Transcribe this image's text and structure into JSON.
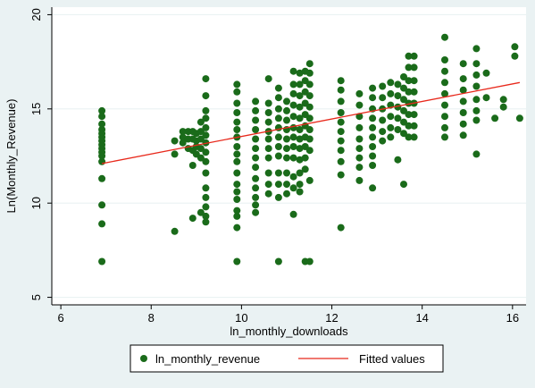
{
  "colors": {
    "page_background": "#eaf2f3",
    "plot_background": "#ffffff",
    "marker": "#1a6b1a",
    "fitted_line": "#e8291c",
    "gridline": "#eaf2f3",
    "axis": "#000000"
  },
  "chart_data": {
    "type": "scatter",
    "title": "",
    "xlabel": "ln_monthly_downloads",
    "ylabel": "Ln(Monthly_Revenue)",
    "xlim": [
      5.8,
      16.3
    ],
    "ylim": [
      4.6,
      20.4
    ],
    "xticks": [
      6,
      8,
      10,
      12,
      14,
      16
    ],
    "yticks": [
      5,
      10,
      15,
      20
    ],
    "grid": "horizontal",
    "legend_position": "bottom",
    "series": [
      {
        "name": "ln_monthly_revenue",
        "kind": "points",
        "points": [
          [
            6.91,
            14.9
          ],
          [
            6.91,
            14.6
          ],
          [
            6.91,
            14.2
          ],
          [
            6.91,
            13.9
          ],
          [
            6.91,
            13.7
          ],
          [
            6.91,
            13.5
          ],
          [
            6.91,
            13.3
          ],
          [
            6.91,
            13.1
          ],
          [
            6.91,
            12.9
          ],
          [
            6.91,
            12.7
          ],
          [
            6.91,
            12.5
          ],
          [
            6.91,
            12.2
          ],
          [
            6.91,
            11.3
          ],
          [
            6.91,
            9.9
          ],
          [
            6.91,
            8.9
          ],
          [
            6.91,
            6.9
          ],
          [
            8.52,
            13.3
          ],
          [
            8.52,
            12.6
          ],
          [
            8.52,
            8.5
          ],
          [
            8.7,
            13.8
          ],
          [
            8.7,
            13.5
          ],
          [
            8.7,
            13.2
          ],
          [
            8.82,
            13.8
          ],
          [
            8.82,
            13.4
          ],
          [
            8.82,
            12.9
          ],
          [
            8.92,
            13.8
          ],
          [
            8.92,
            13.4
          ],
          [
            8.92,
            12.8
          ],
          [
            8.92,
            9.2
          ],
          [
            8.92,
            12.0
          ],
          [
            9.0,
            13.7
          ],
          [
            9.0,
            13.3
          ],
          [
            9.0,
            13.0
          ],
          [
            9.0,
            12.6
          ],
          [
            9.1,
            14.3
          ],
          [
            9.1,
            13.8
          ],
          [
            9.1,
            13.4
          ],
          [
            9.1,
            12.9
          ],
          [
            9.1,
            12.4
          ],
          [
            9.1,
            9.5
          ],
          [
            9.21,
            16.6
          ],
          [
            9.21,
            15.7
          ],
          [
            9.21,
            14.9
          ],
          [
            9.21,
            14.5
          ],
          [
            9.21,
            14.0
          ],
          [
            9.21,
            13.6
          ],
          [
            9.21,
            13.2
          ],
          [
            9.21,
            12.7
          ],
          [
            9.21,
            12.2
          ],
          [
            9.21,
            11.6
          ],
          [
            9.21,
            10.8
          ],
          [
            9.21,
            10.3
          ],
          [
            9.21,
            9.8
          ],
          [
            9.21,
            9.3
          ],
          [
            9.21,
            9.0
          ],
          [
            9.9,
            16.3
          ],
          [
            9.9,
            15.9
          ],
          [
            9.9,
            15.3
          ],
          [
            9.9,
            14.8
          ],
          [
            9.9,
            14.3
          ],
          [
            9.9,
            13.9
          ],
          [
            9.9,
            13.5
          ],
          [
            9.9,
            13.0
          ],
          [
            9.9,
            12.6
          ],
          [
            9.9,
            12.2
          ],
          [
            9.9,
            11.6
          ],
          [
            9.9,
            11.0
          ],
          [
            9.9,
            10.6
          ],
          [
            9.9,
            10.2
          ],
          [
            9.9,
            9.6
          ],
          [
            9.9,
            9.3
          ],
          [
            9.9,
            8.7
          ],
          [
            9.9,
            6.9
          ],
          [
            10.31,
            15.4
          ],
          [
            10.31,
            14.9
          ],
          [
            10.31,
            14.4
          ],
          [
            10.31,
            13.9
          ],
          [
            10.31,
            13.4
          ],
          [
            10.31,
            12.9
          ],
          [
            10.31,
            12.4
          ],
          [
            10.31,
            11.9
          ],
          [
            10.31,
            11.3
          ],
          [
            10.31,
            10.8
          ],
          [
            10.31,
            10.3
          ],
          [
            10.31,
            9.9
          ],
          [
            10.31,
            9.5
          ],
          [
            10.6,
            16.6
          ],
          [
            10.6,
            15.3
          ],
          [
            10.6,
            14.8
          ],
          [
            10.6,
            14.3
          ],
          [
            10.6,
            13.8
          ],
          [
            10.6,
            13.4
          ],
          [
            10.6,
            12.9
          ],
          [
            10.6,
            12.4
          ],
          [
            10.6,
            11.6
          ],
          [
            10.6,
            11.0
          ],
          [
            10.6,
            10.5
          ],
          [
            10.82,
            16.1
          ],
          [
            10.82,
            15.6
          ],
          [
            10.82,
            15.0
          ],
          [
            10.82,
            14.5
          ],
          [
            10.82,
            14.0
          ],
          [
            10.82,
            13.5
          ],
          [
            10.82,
            13.0
          ],
          [
            10.82,
            12.5
          ],
          [
            10.82,
            11.6
          ],
          [
            10.82,
            11.0
          ],
          [
            10.82,
            10.3
          ],
          [
            10.82,
            6.9
          ],
          [
            11.0,
            15.4
          ],
          [
            11.0,
            14.9
          ],
          [
            11.0,
            14.4
          ],
          [
            11.0,
            13.9
          ],
          [
            11.0,
            13.4
          ],
          [
            11.0,
            12.9
          ],
          [
            11.0,
            12.4
          ],
          [
            11.0,
            11.6
          ],
          [
            11.0,
            11.0
          ],
          [
            11.0,
            10.5
          ],
          [
            11.15,
            17.0
          ],
          [
            11.15,
            16.3
          ],
          [
            11.15,
            15.8
          ],
          [
            11.15,
            15.2
          ],
          [
            11.15,
            14.6
          ],
          [
            11.15,
            14.0
          ],
          [
            11.15,
            13.5
          ],
          [
            11.15,
            13.0
          ],
          [
            11.15,
            12.4
          ],
          [
            11.15,
            11.4
          ],
          [
            11.15,
            10.8
          ],
          [
            11.15,
            9.4
          ],
          [
            11.29,
            16.9
          ],
          [
            11.29,
            16.3
          ],
          [
            11.29,
            15.7
          ],
          [
            11.29,
            15.1
          ],
          [
            11.29,
            14.5
          ],
          [
            11.29,
            13.9
          ],
          [
            11.29,
            13.4
          ],
          [
            11.29,
            12.9
          ],
          [
            11.29,
            12.3
          ],
          [
            11.29,
            11.6
          ],
          [
            11.29,
            11.0
          ],
          [
            11.29,
            10.6
          ],
          [
            11.41,
            17.0
          ],
          [
            11.41,
            16.5
          ],
          [
            11.41,
            15.9
          ],
          [
            11.41,
            15.3
          ],
          [
            11.41,
            14.7
          ],
          [
            11.41,
            14.1
          ],
          [
            11.41,
            13.5
          ],
          [
            11.41,
            13.0
          ],
          [
            11.41,
            12.4
          ],
          [
            11.41,
            11.8
          ],
          [
            11.41,
            6.9
          ],
          [
            11.51,
            17.4
          ],
          [
            11.51,
            16.9
          ],
          [
            11.51,
            16.3
          ],
          [
            11.51,
            15.7
          ],
          [
            11.51,
            15.1
          ],
          [
            11.51,
            14.5
          ],
          [
            11.51,
            13.9
          ],
          [
            11.51,
            13.4
          ],
          [
            11.51,
            12.8
          ],
          [
            11.51,
            11.2
          ],
          [
            11.51,
            6.9
          ],
          [
            12.2,
            16.5
          ],
          [
            12.2,
            16.0
          ],
          [
            12.2,
            15.4
          ],
          [
            12.2,
            14.8
          ],
          [
            12.2,
            14.3
          ],
          [
            12.2,
            13.8
          ],
          [
            12.2,
            13.3
          ],
          [
            12.2,
            12.8
          ],
          [
            12.2,
            12.2
          ],
          [
            12.2,
            11.5
          ],
          [
            12.2,
            8.7
          ],
          [
            12.61,
            15.8
          ],
          [
            12.61,
            15.2
          ],
          [
            12.61,
            14.6
          ],
          [
            12.61,
            14.0
          ],
          [
            12.61,
            13.4
          ],
          [
            12.61,
            12.9
          ],
          [
            12.61,
            12.4
          ],
          [
            12.61,
            11.9
          ],
          [
            12.61,
            11.2
          ],
          [
            12.9,
            16.1
          ],
          [
            12.9,
            15.6
          ],
          [
            12.9,
            15.0
          ],
          [
            12.9,
            14.5
          ],
          [
            12.9,
            14.0
          ],
          [
            12.9,
            13.5
          ],
          [
            12.9,
            13.0
          ],
          [
            12.9,
            12.5
          ],
          [
            12.9,
            12.0
          ],
          [
            12.9,
            10.8
          ],
          [
            13.12,
            16.2
          ],
          [
            13.12,
            15.6
          ],
          [
            13.12,
            15.0
          ],
          [
            13.12,
            14.4
          ],
          [
            13.12,
            13.8
          ],
          [
            13.12,
            13.3
          ],
          [
            13.3,
            16.4
          ],
          [
            13.3,
            15.8
          ],
          [
            13.3,
            15.2
          ],
          [
            13.3,
            14.6
          ],
          [
            13.3,
            14.0
          ],
          [
            13.3,
            13.5
          ],
          [
            13.46,
            16.3
          ],
          [
            13.46,
            15.7
          ],
          [
            13.46,
            15.1
          ],
          [
            13.46,
            14.5
          ],
          [
            13.46,
            13.9
          ],
          [
            13.46,
            12.3
          ],
          [
            13.59,
            16.7
          ],
          [
            13.59,
            16.1
          ],
          [
            13.59,
            15.5
          ],
          [
            13.59,
            14.9
          ],
          [
            13.59,
            14.3
          ],
          [
            13.59,
            13.7
          ],
          [
            13.59,
            11.0
          ],
          [
            13.7,
            17.8
          ],
          [
            13.7,
            17.2
          ],
          [
            13.7,
            16.5
          ],
          [
            13.7,
            15.9
          ],
          [
            13.7,
            15.3
          ],
          [
            13.7,
            14.7
          ],
          [
            13.7,
            14.1
          ],
          [
            13.7,
            13.5
          ],
          [
            13.82,
            17.8
          ],
          [
            13.82,
            17.2
          ],
          [
            13.82,
            16.5
          ],
          [
            13.82,
            15.9
          ],
          [
            13.82,
            15.3
          ],
          [
            13.82,
            14.7
          ],
          [
            13.82,
            14.1
          ],
          [
            13.82,
            13.5
          ],
          [
            14.5,
            18.8
          ],
          [
            14.5,
            17.6
          ],
          [
            14.5,
            17.0
          ],
          [
            14.5,
            16.4
          ],
          [
            14.5,
            15.8
          ],
          [
            14.5,
            15.2
          ],
          [
            14.5,
            14.6
          ],
          [
            14.5,
            14.0
          ],
          [
            14.5,
            13.5
          ],
          [
            14.91,
            17.4
          ],
          [
            14.91,
            16.6
          ],
          [
            14.91,
            16.0
          ],
          [
            14.91,
            15.4
          ],
          [
            14.91,
            14.8
          ],
          [
            14.91,
            14.2
          ],
          [
            14.91,
            13.6
          ],
          [
            15.2,
            18.2
          ],
          [
            15.2,
            17.4
          ],
          [
            15.2,
            16.8
          ],
          [
            15.2,
            16.2
          ],
          [
            15.2,
            15.5
          ],
          [
            15.2,
            14.9
          ],
          [
            15.2,
            14.4
          ],
          [
            15.2,
            12.6
          ],
          [
            15.42,
            16.9
          ],
          [
            15.42,
            15.6
          ],
          [
            15.61,
            14.5
          ],
          [
            15.8,
            15.1
          ],
          [
            15.8,
            15.5
          ],
          [
            16.05,
            18.3
          ],
          [
            16.05,
            17.8
          ],
          [
            16.16,
            14.5
          ]
        ]
      },
      {
        "name": "Fitted values",
        "kind": "line",
        "x": [
          6.91,
          16.16
        ],
        "y": [
          12.1,
          16.4
        ]
      }
    ]
  }
}
